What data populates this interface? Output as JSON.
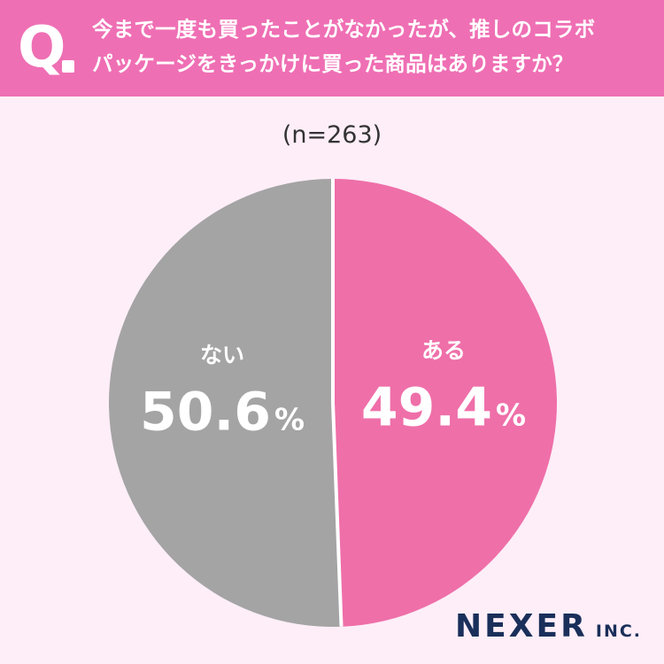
{
  "header": {
    "q_mark": "Q",
    "question_lines": [
      "今まで一度も買ったことがなかったが、推しのコラボ",
      "パッケージをきっかけに買った商品はありますか？"
    ]
  },
  "sample_label": "(n=263)",
  "chart_data": {
    "type": "pie",
    "start": "top",
    "direction": "clockwise",
    "slices": [
      {
        "label": "ある",
        "percent_text": "49.4",
        "value": 49.4,
        "color": "#ef6fa9"
      },
      {
        "label": "ない",
        "percent_text": "50.6",
        "value": 50.6,
        "color": "#a4a4a4"
      }
    ],
    "unit": "%",
    "label_color": "#ffffff",
    "separator_color": "#ffffff"
  },
  "brand": {
    "main": "NEXER",
    "sub": "INC."
  },
  "colors": {
    "header_bg": "#ef6fb4",
    "page_bg": "#fdeef8",
    "brand": "#1a2f5a"
  }
}
